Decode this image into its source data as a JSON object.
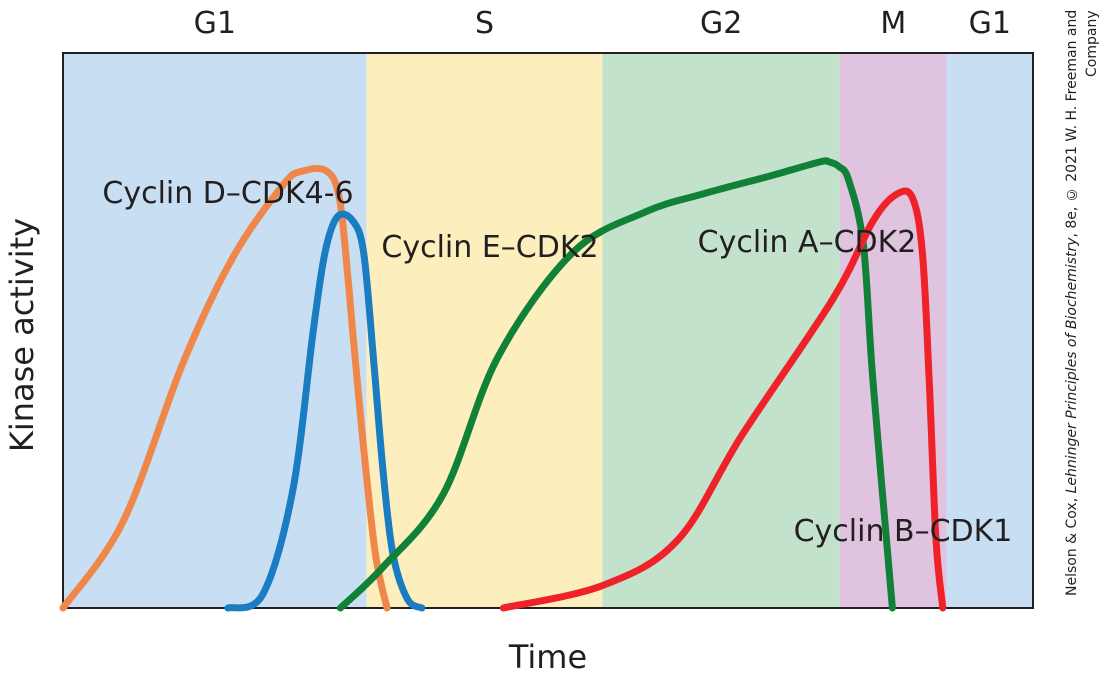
{
  "chart_data": {
    "type": "line",
    "title": "",
    "xlabel": "Time",
    "ylabel": "Kinase activity",
    "xlim": [
      0,
      1
    ],
    "ylim": [
      0,
      1
    ],
    "grid": false,
    "phases": [
      {
        "name": "G1",
        "start": 0.0,
        "end": 0.313,
        "color": "#c8dff3"
      },
      {
        "name": "S",
        "start": 0.313,
        "end": 0.556,
        "color": "#fdefbd"
      },
      {
        "name": "G2",
        "start": 0.556,
        "end": 0.801,
        "color": "#c2e2cc"
      },
      {
        "name": "M",
        "start": 0.801,
        "end": 0.911,
        "color": "#dfc3df"
      },
      {
        "name": "G1",
        "start": 0.911,
        "end": 1.0,
        "color": "#c8dff3"
      }
    ],
    "series": [
      {
        "name": "Cyclin D–CDK4-6",
        "color": "#f0874a",
        "x": [
          0.0,
          0.062,
          0.124,
          0.175,
          0.227,
          0.247,
          0.272,
          0.285,
          0.294,
          0.299,
          0.31,
          0.322,
          0.334
        ],
        "y": [
          0.0,
          0.19,
          0.54,
          0.77,
          0.93,
          0.96,
          0.96,
          0.9,
          0.72,
          0.6,
          0.35,
          0.12,
          0.0
        ]
      },
      {
        "name": "Cyclin E–CDK2",
        "color": "#1a7cc1",
        "x": [
          0.17,
          0.206,
          0.237,
          0.258,
          0.27,
          0.283,
          0.299,
          0.31,
          0.32,
          0.33,
          0.34,
          0.355,
          0.37
        ],
        "y": [
          0.0,
          0.03,
          0.26,
          0.61,
          0.78,
          0.86,
          0.85,
          0.78,
          0.55,
          0.3,
          0.12,
          0.02,
          0.0
        ]
      },
      {
        "name": "Cyclin A–CDK2",
        "color": "#128138",
        "x": [
          0.286,
          0.33,
          0.392,
          0.448,
          0.525,
          0.6,
          0.66,
          0.73,
          0.78,
          0.79,
          0.8,
          0.81,
          0.825,
          0.835,
          0.855
        ],
        "y": [
          0.0,
          0.09,
          0.25,
          0.55,
          0.78,
          0.87,
          0.91,
          0.95,
          0.98,
          0.98,
          0.97,
          0.94,
          0.8,
          0.5,
          0.0
        ]
      },
      {
        "name": "Cyclin B–CDK1",
        "color": "#ee2228",
        "x": [
          0.454,
          0.557,
          0.634,
          0.7,
          0.794,
          0.835,
          0.86,
          0.876,
          0.886,
          0.893,
          0.9,
          0.907
        ],
        "y": [
          0.0,
          0.05,
          0.15,
          0.38,
          0.68,
          0.85,
          0.91,
          0.9,
          0.78,
          0.5,
          0.15,
          0.0
        ]
      }
    ],
    "annotations": [
      {
        "text": "Cyclin D–CDK4-6",
        "series": 0
      },
      {
        "text": "Cyclin E–CDK2",
        "series": 1
      },
      {
        "text": "Cyclin A–CDK2",
        "series": 2
      },
      {
        "text": "Cyclin B–CDK1",
        "series": 3
      }
    ],
    "legend": "none"
  },
  "credit": {
    "text_before": "Nelson & Cox, ",
    "title": "Lehninger Principles of Biochemistry",
    "text_after": ", 8e, © 2021 W. H. Freeman and Company"
  }
}
